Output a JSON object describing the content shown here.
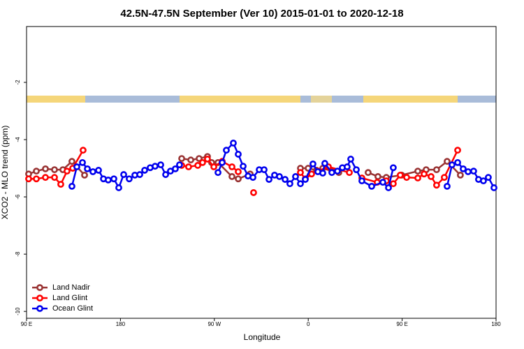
{
  "chart_data": {
    "type": "line",
    "title": "42.5N-47.5N September (Ver 10)   2015-01-01 to 2020-12-18",
    "x_label": "Longitude",
    "y_label": "XCO2 - MLO trend (ppm)",
    "xlim": [
      90,
      540
    ],
    "ylim": [
      -10.24,
      -0.05
    ],
    "xticks": [
      {
        "value": 90,
        "label": "90 E"
      },
      180,
      {
        "value": 270,
        "label": "90 W"
      },
      {
        "value": 360,
        "label": "0"
      },
      {
        "value": 450,
        "label": "90 E"
      },
      {
        "value": 540,
        "label": "180"
      }
    ],
    "yticks": [
      -2,
      -4,
      -6,
      -8,
      -10
    ],
    "legend": "bottom-left",
    "series": [
      {
        "name": "Land Nadir",
        "color": "#993333",
        "x": [
          92.0,
          99.4,
          108.1,
          116.8,
          124.8,
          133.5,
          145.6,
          null,
          238.7,
          247.4,
          255.4,
          263.4,
          267.4,
          273.5,
          286.9,
          292.9,
          304.3,
          null,
          352.5,
          359.9,
          367.9,
          373.9,
          382.6,
          389.3,
          null,
          417.4,
          426.8,
          434.8,
          449.5,
          465.0,
          473.0,
          483.0,
          493.1,
          505.8
        ],
        "values": [
          -5.2,
          -5.1,
          -5.02,
          -5.05,
          -5.05,
          -4.76,
          -5.24,
          null,
          -4.66,
          -4.71,
          -4.66,
          -4.59,
          -4.8,
          -4.8,
          -5.29,
          -5.37,
          -5.2,
          null,
          -5.0,
          -5.0,
          -5.07,
          -5.0,
          -5.1,
          -5.15,
          null,
          -5.15,
          -5.29,
          -5.32,
          -5.24,
          -5.1,
          -5.05,
          -5.05,
          -4.76,
          -5.24
        ]
      },
      {
        "name": "Land Glint",
        "color": "#ff0000",
        "x": [
          92.0,
          99.4,
          108.1,
          116.8,
          122.8,
          128.8,
          134.2,
          144.2,
          null,
          238.7,
          245.3,
          254.1,
          258.7,
          263.4,
          269.5,
          277.5,
          286.9,
          292.9,
          null,
          307.6,
          null,
          352.5,
          357.2,
          363.2,
          369.2,
          379.3,
          399.4,
          null,
          411.4,
          426.1,
          434.8,
          441.5,
          448.2,
          454.3,
          465.0,
          471.0,
          477.7,
          483.0,
          490.4,
          503.2
        ],
        "values": [
          -5.37,
          -5.37,
          -5.32,
          -5.32,
          -5.56,
          -5.1,
          -5.0,
          -4.37,
          null,
          -4.9,
          -4.95,
          -4.9,
          -4.8,
          -4.68,
          -4.95,
          -4.76,
          -4.95,
          -5.12,
          null,
          -5.85,
          null,
          -5.15,
          -5.37,
          -5.2,
          -5.1,
          -4.95,
          -5.15,
          null,
          -5.34,
          -5.49,
          -5.44,
          -5.54,
          -5.24,
          -5.32,
          -5.34,
          -5.2,
          -5.29,
          -5.59,
          -5.32,
          -4.37
        ]
      },
      {
        "name": "Ocean Glint",
        "color": "#0000ee",
        "x": [
          133.5,
          138.2,
          143.6,
          148.3,
          153.6,
          159.0,
          163.7,
          168.3,
          173.7,
          178.4,
          183.1,
          188.4,
          193.8,
          198.5,
          203.2,
          208.5,
          213.2,
          218.6,
          223.3,
          227.9,
          232.6,
          236.6,
          null,
          273.5,
          277.5,
          281.5,
          288.2,
          292.9,
          297.6,
          302.3,
          307.0,
          313.0,
          317.7,
          322.4,
          327.7,
          332.4,
          337.8,
          342.4,
          347.8,
          352.5,
          357.2,
          364.5,
          369.2,
          373.9,
          375.9,
          382.6,
          388.0,
          392.7,
          397.3,
          400.7,
          406.1,
          411.4,
          420.8,
          431.5,
          436.9,
          441.5,
          null,
          493.1,
          497.8,
          503.2,
          508.5,
          513.2,
          518.5,
          523.2,
          527.9,
          532.6,
          538.0
        ],
        "values": [
          -5.63,
          -4.95,
          -4.8,
          -5.02,
          -5.12,
          -5.07,
          -5.37,
          -5.41,
          -5.37,
          -5.68,
          -5.22,
          -5.37,
          -5.24,
          -5.22,
          -5.07,
          -4.98,
          -4.93,
          -4.88,
          -5.22,
          -5.1,
          -5.02,
          -4.88,
          null,
          -5.15,
          -4.8,
          -4.37,
          -4.12,
          -4.51,
          -4.93,
          -5.27,
          -5.32,
          -5.05,
          -5.05,
          -5.39,
          -5.24,
          -5.29,
          -5.39,
          -5.54,
          -5.29,
          -5.54,
          -5.39,
          -4.85,
          -5.12,
          -5.17,
          -4.83,
          -5.15,
          -5.1,
          -4.98,
          -4.95,
          -4.68,
          -5.05,
          -5.44,
          -5.63,
          -5.49,
          -5.68,
          -4.98,
          null,
          -5.63,
          -4.88,
          -4.8,
          -5.02,
          -5.12,
          -5.1,
          -5.39,
          -5.44,
          -5.32,
          -5.68
        ]
      }
    ]
  }
}
